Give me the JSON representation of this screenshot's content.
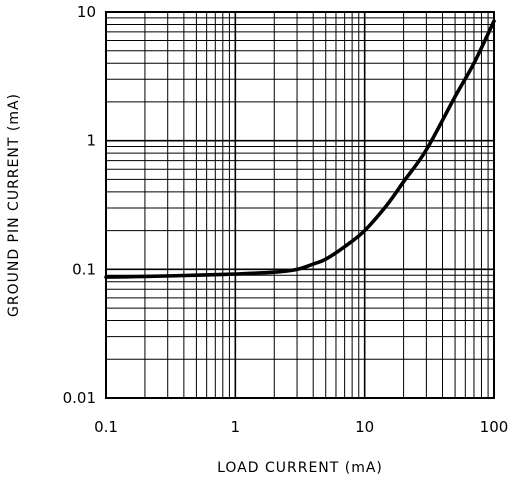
{
  "chart_data": {
    "type": "line",
    "title": "",
    "xlabel": "LOAD CURRENT (mA)",
    "ylabel": "GROUND PIN CURRENT (mA)",
    "xscale": "log",
    "yscale": "log",
    "xlim": [
      0.1,
      100
    ],
    "ylim": [
      0.01,
      10
    ],
    "grid": true,
    "x_ticks": [
      "0.1",
      "1",
      "10",
      "100"
    ],
    "y_ticks": [
      "0.01",
      "0.1",
      "1",
      "10"
    ],
    "series": [
      {
        "name": "",
        "color": "#000000",
        "x": [
          0.1,
          0.2,
          0.5,
          1,
          2,
          3,
          4,
          5,
          7,
          10,
          15,
          20,
          30,
          50,
          70,
          100
        ],
        "y": [
          0.087,
          0.088,
          0.09,
          0.092,
          0.095,
          0.1,
          0.11,
          0.12,
          0.15,
          0.2,
          0.32,
          0.48,
          0.85,
          2.2,
          4.0,
          8.5
        ]
      }
    ]
  }
}
